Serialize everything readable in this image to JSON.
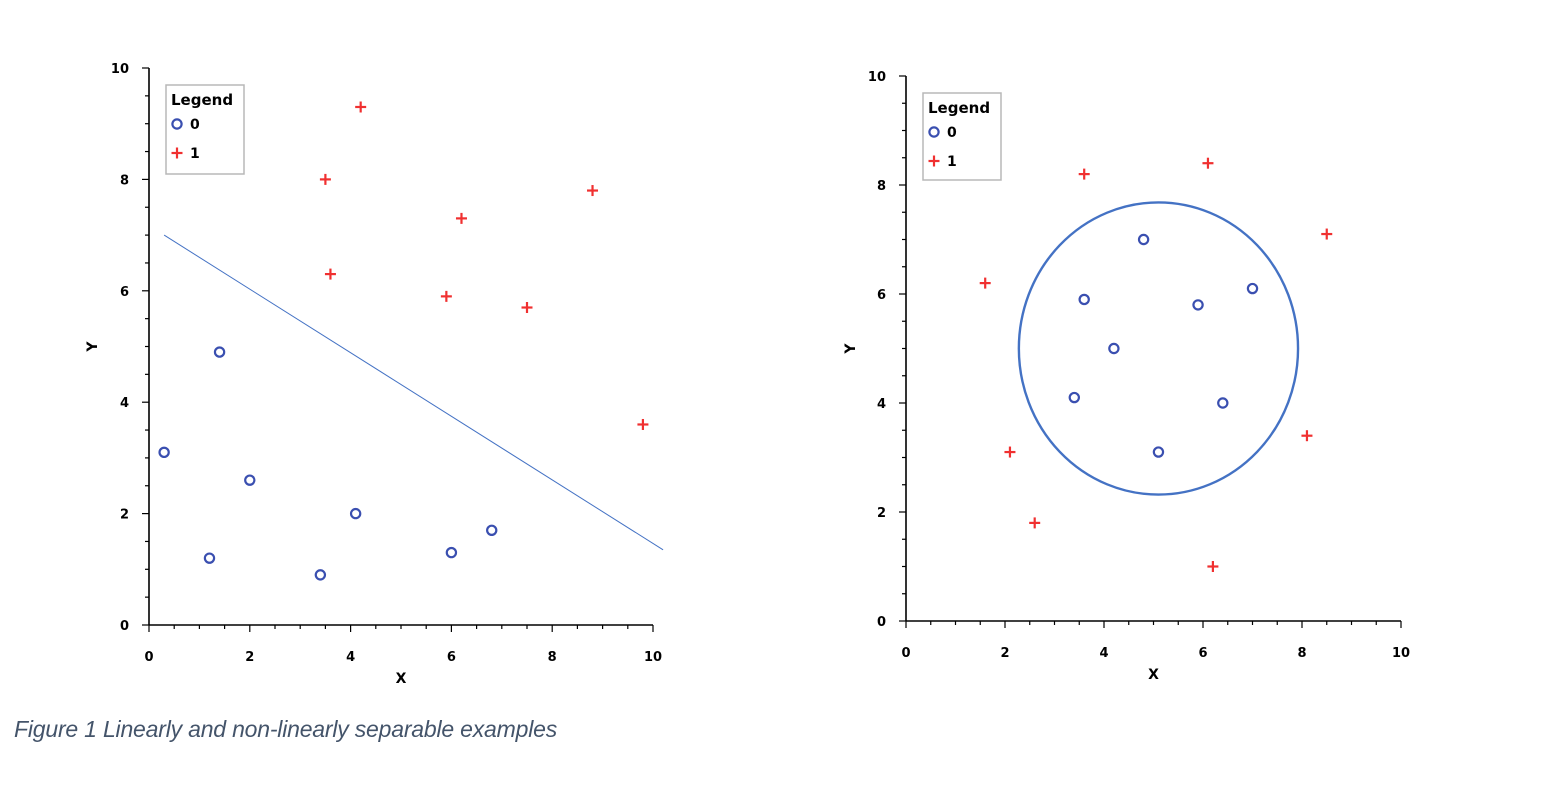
{
  "caption": "Figure 1 Linearly and non-linearly separable examples",
  "colors": {
    "class0": "#3a4fb0",
    "class1": "#f03030",
    "boundary_line": "#4472c4",
    "boundary_circle": "#4472c4",
    "axis": "#000000",
    "caption": "#44546a"
  },
  "chart_data": [
    {
      "type": "scatter",
      "title": "",
      "xlabel": "X",
      "ylabel": "Y",
      "xlim": [
        0,
        10
      ],
      "ylim": [
        0,
        10
      ],
      "xticks": [
        "0",
        "2",
        "4",
        "6",
        "8",
        "10"
      ],
      "yticks": [
        "0",
        "2",
        "4",
        "6",
        "8",
        "10"
      ],
      "grid": false,
      "legend": {
        "title": "Legend",
        "position": "top-left",
        "entries": [
          "0",
          "1"
        ]
      },
      "series": [
        {
          "name": "0",
          "marker": "circle",
          "points": [
            [
              0.3,
              3.1
            ],
            [
              1.4,
              4.9
            ],
            [
              2.0,
              2.6
            ],
            [
              1.2,
              1.2
            ],
            [
              3.4,
              0.9
            ],
            [
              4.1,
              2.0
            ],
            [
              6.0,
              1.3
            ],
            [
              6.8,
              1.7
            ]
          ]
        },
        {
          "name": "1",
          "marker": "plus",
          "points": [
            [
              4.2,
              9.3
            ],
            [
              3.5,
              8.0
            ],
            [
              6.2,
              7.3
            ],
            [
              8.8,
              7.8
            ],
            [
              3.6,
              6.3
            ],
            [
              5.9,
              5.9
            ],
            [
              7.5,
              5.7
            ],
            [
              9.8,
              3.6
            ]
          ]
        }
      ],
      "boundary": {
        "type": "line",
        "from": [
          0.3,
          7.0
        ],
        "to": [
          10.2,
          1.35
        ]
      }
    },
    {
      "type": "scatter",
      "title": "",
      "xlabel": "X",
      "ylabel": "Y",
      "xlim": [
        0,
        10
      ],
      "ylim": [
        0,
        10
      ],
      "xticks": [
        "0",
        "2",
        "4",
        "6",
        "8",
        "10"
      ],
      "yticks": [
        "0",
        "2",
        "4",
        "6",
        "8",
        "10"
      ],
      "grid": false,
      "legend": {
        "title": "Legend",
        "position": "top-left",
        "entries": [
          "0",
          "1"
        ]
      },
      "series": [
        {
          "name": "0",
          "marker": "circle",
          "points": [
            [
              4.8,
              7.0
            ],
            [
              3.6,
              5.9
            ],
            [
              5.9,
              5.8
            ],
            [
              7.0,
              6.1
            ],
            [
              4.2,
              5.0
            ],
            [
              3.4,
              4.1
            ],
            [
              6.4,
              4.0
            ],
            [
              5.1,
              3.1
            ]
          ]
        },
        {
          "name": "1",
          "marker": "plus",
          "points": [
            [
              3.6,
              8.2
            ],
            [
              6.1,
              8.4
            ],
            [
              8.5,
              7.1
            ],
            [
              1.6,
              6.2
            ],
            [
              2.1,
              3.1
            ],
            [
              8.1,
              3.4
            ],
            [
              2.6,
              1.8
            ],
            [
              6.2,
              1.0
            ]
          ]
        }
      ],
      "boundary": {
        "type": "ellipse",
        "center": [
          5.1,
          5.0
        ],
        "rx": 2.82,
        "ry": 2.68
      }
    }
  ]
}
